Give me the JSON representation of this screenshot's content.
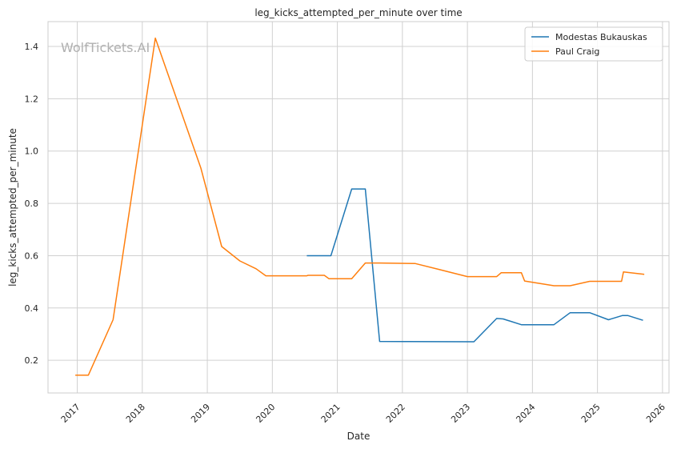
{
  "chart_data": {
    "type": "line",
    "title": "leg_kicks_attempted_per_minute over time",
    "xlabel": "Date",
    "ylabel": "leg_kicks_attempted_per_minute",
    "watermark": "WolfTickets.AI",
    "xlim": [
      2016.55,
      2026.1
    ],
    "ylim": [
      0.075,
      1.495
    ],
    "x_ticks": [
      2017,
      2018,
      2019,
      2020,
      2021,
      2022,
      2023,
      2024,
      2025,
      2026
    ],
    "x_tick_labels": [
      "2017",
      "2018",
      "2019",
      "2020",
      "2021",
      "2022",
      "2023",
      "2024",
      "2025",
      "2026"
    ],
    "y_ticks": [
      0.2,
      0.4,
      0.6,
      0.8,
      1.0,
      1.2,
      1.4
    ],
    "y_tick_labels": [
      "0.2",
      "0.4",
      "0.6",
      "0.8",
      "1.0",
      "1.2",
      "1.4"
    ],
    "grid": true,
    "legend_position": "top-right",
    "series": [
      {
        "name": "Modestas Bukauskas",
        "color": "#1f77b4",
        "x": [
          2020.53,
          2020.9,
          2021.22,
          2021.43,
          2021.65,
          2023.1,
          2023.45,
          2023.55,
          2023.83,
          2024.33,
          2024.58,
          2024.88,
          2025.17,
          2025.38,
          2025.47,
          2025.7
        ],
        "y": [
          0.6,
          0.6,
          0.855,
          0.855,
          0.272,
          0.271,
          0.36,
          0.358,
          0.336,
          0.336,
          0.382,
          0.382,
          0.355,
          0.371,
          0.371,
          0.353
        ]
      },
      {
        "name": "Paul Craig",
        "color": "#ff7f0e",
        "x": [
          2016.97,
          2017.17,
          2017.55,
          2018.2,
          2018.9,
          2019.22,
          2019.5,
          2019.75,
          2019.9,
          2020.53,
          2020.55,
          2020.8,
          2020.87,
          2021.22,
          2021.43,
          2021.65,
          2022.2,
          2022.55,
          2023.0,
          2023.45,
          2023.52,
          2023.83,
          2023.88,
          2024.33,
          2024.58,
          2024.88,
          2025.37,
          2025.4,
          2025.72
        ],
        "y": [
          0.143,
          0.143,
          0.355,
          1.432,
          0.935,
          0.635,
          0.58,
          0.55,
          0.523,
          0.523,
          0.525,
          0.525,
          0.512,
          0.512,
          0.572,
          0.572,
          0.57,
          0.548,
          0.52,
          0.52,
          0.535,
          0.535,
          0.503,
          0.485,
          0.485,
          0.502,
          0.502,
          0.538,
          0.529
        ]
      }
    ]
  }
}
